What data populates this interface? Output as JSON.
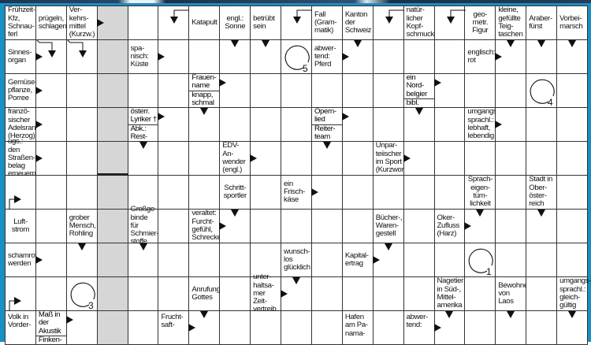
{
  "puzzle": {
    "colors": {
      "frame": "#1a8fc2",
      "shaded_column": "#d6d6d6",
      "lines": "#333333"
    },
    "rows": [
      [
        {
          "t": "clue",
          "text": "Frühzeit-\nKfz,\nSchnau-\nferl"
        },
        {
          "t": "clue",
          "text": "prügeln,\nschlagen"
        },
        {
          "t": "clue",
          "text": "Ver-\nkehrs-\nmittel\n(Kurzw.)"
        },
        {
          "a": [
            "R"
          ]
        },
        {},
        {
          "a": [
            "BD"
          ]
        },
        {
          "t": "clue",
          "text": "Katapult",
          "c": 1
        },
        {
          "t": "clue",
          "text": "engl.:\nSonne",
          "c": 1
        },
        {
          "t": "clue",
          "text": "betrübt\nsein"
        },
        {
          "a": [
            "BD"
          ]
        },
        {
          "t": "clue",
          "text": "Fall\n(Gram-\nmatik)"
        },
        {
          "t": "clue",
          "text": "Kanton\nder\nSchweiz"
        },
        {
          "a": [
            "BD"
          ]
        },
        {
          "t": "clue",
          "text": "natür-\nlicher\nKopf-\nschmuck"
        },
        {
          "a": [
            "BD"
          ]
        },
        {
          "t": "clue",
          "text": "geo-\nmetr.\nFigur",
          "c": 1
        },
        {
          "t": "clue",
          "text": "kleine,\ngefüllte\nTeig-\ntaschen"
        },
        {
          "t": "clue",
          "text": "Araber-\nfürst"
        },
        {
          "t": "clue",
          "text": "Vorbei-\nmarsch"
        }
      ],
      [
        {
          "t": "clue",
          "text": "Sinnes-\norgan"
        },
        {
          "a": [
            "R",
            "BDL"
          ]
        },
        {
          "a": [
            "BDL"
          ]
        },
        {},
        {
          "t": "clue",
          "text": "spa-\nnisch:\nKüste"
        },
        {
          "a": [
            "R"
          ]
        },
        {},
        {
          "a": [
            "D"
          ]
        },
        {
          "a": [
            "D"
          ]
        },
        {
          "t": "circle",
          "n": "5"
        },
        {
          "t": "clue",
          "text": "abwer-\ntend:\nPferd"
        },
        {
          "a": [
            "R",
            "D"
          ]
        },
        {},
        {},
        {},
        {
          "t": "clue",
          "text": "englisch:\nrot"
        },
        {
          "a": [
            "R",
            "D"
          ]
        },
        {
          "a": [
            "D"
          ]
        },
        {
          "a": [
            "D"
          ]
        }
      ],
      [
        {
          "t": "clue",
          "text": "Gemüse-\npflanze,\nPorree"
        },
        {
          "a": [
            "R"
          ]
        },
        {},
        {},
        {},
        {},
        {
          "t": "split",
          "top": "Frauen-\nname",
          "bottom": "knapp,\nschmal"
        },
        {
          "a": [
            "RT"
          ]
        },
        {},
        {},
        {},
        {},
        {},
        {
          "t": "split",
          "top": "ein\nNord-\nbelgier",
          "bottom": "bibl. Land"
        },
        {
          "a": [
            "RT"
          ]
        },
        {},
        {},
        {
          "t": "circle",
          "n": "4"
        },
        {}
      ],
      [
        {
          "t": "clue",
          "text": "franzö-\nsischer\nAdelsrang\n(Herzog)"
        },
        {
          "a": [
            "R"
          ]
        },
        {},
        {},
        {
          "t": "split",
          "top": "österr.\nLyriker †",
          "bottom": "Abk.: Rest-\nzahlung"
        },
        {
          "a": [
            "RT"
          ]
        },
        {
          "a": [
            "D"
          ]
        },
        {},
        {},
        {},
        {
          "t": "split",
          "top": "Opern-\nlied",
          "bottom": "Reiter-\nteam"
        },
        {
          "a": [
            "RT"
          ]
        },
        {},
        {
          "a": [
            "D"
          ]
        },
        {},
        {
          "t": "clue",
          "text": "umgangs-\nsprachl.:\nlebhaft,\nlebendig"
        },
        {
          "a": [
            "R"
          ]
        },
        {},
        {}
      ],
      [
        {
          "t": "clue",
          "text": "ugs.: den\nStraßen-\nbelag\nerneuern"
        },
        {
          "a": [
            "R"
          ]
        },
        {},
        {},
        {
          "a": [
            "D"
          ]
        },
        {},
        {},
        {
          "t": "clue",
          "text": "EDV-An-\nwender\n(engl.)"
        },
        {
          "a": [
            "R"
          ]
        },
        {},
        {
          "a": [
            "D"
          ]
        },
        {},
        {
          "t": "clue",
          "text": "Unpar-\nteiischer\nim Sport\n(Kurzwort)"
        },
        {
          "a": [
            "R"
          ]
        },
        {},
        {},
        {},
        {},
        {}
      ],
      [
        {
          "a": [
            "BUR"
          ]
        },
        {},
        {},
        {},
        {},
        {},
        {},
        {
          "t": "clue",
          "text": "Schritt-\nsportler",
          "c": 1
        },
        {},
        {
          "t": "clue",
          "text": "ein\nFrisch-\nkäse"
        },
        {
          "a": [
            "R"
          ]
        },
        {},
        {},
        {},
        {},
        {
          "t": "clue",
          "text": "Sprach-\neigen-\ntüm-\nlichkeit",
          "c": 1
        },
        {},
        {
          "t": "clue",
          "text": "Stadt in\nOber-\nöster-\nreich"
        },
        {}
      ],
      [
        {
          "t": "clue",
          "text": "Luft-\nstrom",
          "c": 1
        },
        {},
        {
          "t": "clue",
          "text": "grober\nMensch,\nRohling"
        },
        {},
        {
          "t": "clue",
          "text": "Großge-\nbinde für\nSchmier-\nstoffe"
        },
        {},
        {
          "t": "clue",
          "text": "veraltet:\nFurcht-\ngefühl,\nSchrecken"
        },
        {
          "a": [
            "R",
            "D"
          ]
        },
        {},
        {},
        {},
        {},
        {
          "t": "clue",
          "text": "Bücher-,\nWaren-\ngestell"
        },
        {},
        {
          "t": "clue",
          "text": "Oker-\nZufluss\n(Harz)"
        },
        {
          "a": [
            "R",
            "D"
          ]
        },
        {},
        {
          "a": [
            "D"
          ]
        },
        {}
      ],
      [
        {
          "t": "clue",
          "text": "schamrot\nwerden"
        },
        {
          "a": [
            "R"
          ]
        },
        {
          "a": [
            "D"
          ]
        },
        {},
        {
          "a": [
            "D"
          ]
        },
        {},
        {},
        {},
        {},
        {
          "t": "clue",
          "text": "wunsch-\nlos\nglücklich"
        },
        {},
        {
          "t": "clue",
          "text": "Kapital-\nertrag"
        },
        {
          "a": [
            "R",
            "D"
          ]
        },
        {},
        {},
        {
          "t": "circle",
          "n": "1"
        },
        {},
        {},
        {}
      ],
      [
        {
          "a": [
            "BUR"
          ]
        },
        {},
        {
          "t": "circle",
          "n": "3"
        },
        {},
        {},
        {},
        {
          "t": "clue",
          "text": "Anrufung\nGottes"
        },
        {},
        {
          "t": "clue",
          "text": "unter-\nhaltsa-\nmer Zeit-\nvertreib"
        },
        {
          "a": [
            "R",
            "D"
          ]
        },
        {},
        {},
        {},
        {},
        {
          "t": "clue",
          "text": "Nagetier\nin Süd-,\nMittel-\namerika"
        },
        {},
        {
          "t": "clue",
          "text": "Bewohner\nvon Laos"
        },
        {},
        {
          "t": "clue",
          "text": "umgangs-\nsprachl.:\ngleich-\ngültig"
        }
      ],
      [
        {
          "t": "clue",
          "text": "Volk in\nVorder-"
        },
        {
          "t": "split",
          "top": "Maß in der\nAkustik",
          "bottom": "Finken-"
        },
        {
          "a": [
            "RT"
          ]
        },
        {},
        {},
        {
          "t": "clue",
          "text": "Frucht-\nsaft-"
        },
        {
          "a": [
            "R",
            "D"
          ]
        },
        {},
        {},
        {},
        {},
        {
          "t": "clue",
          "text": "Hafen\nam Pa-\nnama-"
        },
        {},
        {
          "t": "clue",
          "text": "abwer-\ntend:"
        },
        {
          "a": [
            "R",
            "D"
          ]
        },
        {},
        {
          "a": [
            "D"
          ]
        },
        {},
        {
          "a": [
            "D"
          ]
        }
      ]
    ]
  }
}
